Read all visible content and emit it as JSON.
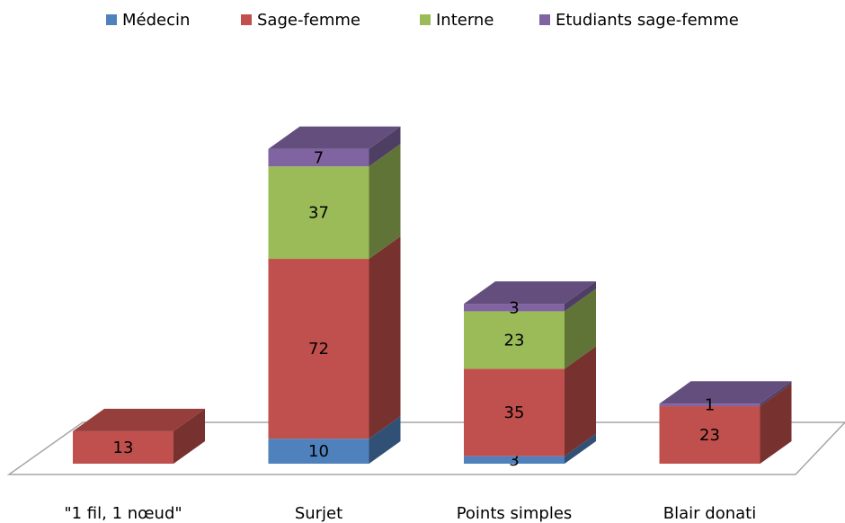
{
  "chart_data": {
    "type": "bar3d_stacked",
    "categories": [
      "\"1 fil, 1 nœud\"",
      "Surjet",
      "Points simples",
      "Blair donati"
    ],
    "series": [
      {
        "name": "Médecin",
        "color": "#4f81bd",
        "values": [
          null,
          10,
          3,
          null
        ]
      },
      {
        "name": "Sage-femme",
        "color": "#c0504d",
        "values": [
          13,
          72,
          35,
          23
        ]
      },
      {
        "name": "Interne",
        "color": "#9bbb59",
        "values": [
          null,
          37,
          23,
          null
        ]
      },
      {
        "name": "Etudiants sage-femme",
        "color": "#8064a2",
        "values": [
          null,
          7,
          3,
          1
        ]
      }
    ],
    "legend": "top"
  }
}
